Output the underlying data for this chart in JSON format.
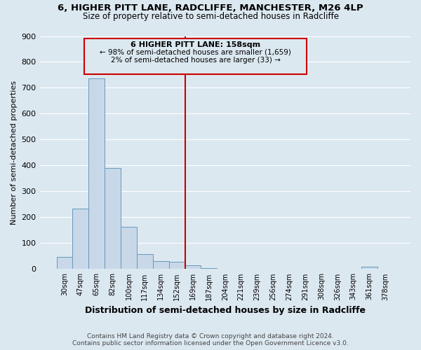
{
  "title": "6, HIGHER PITT LANE, RADCLIFFE, MANCHESTER, M26 4LP",
  "subtitle": "Size of property relative to semi-detached houses in Radcliffe",
  "xlabel": "Distribution of semi-detached houses by size in Radcliffe",
  "ylabel": "Number of semi-detached properties",
  "bin_labels": [
    "30sqm",
    "47sqm",
    "65sqm",
    "82sqm",
    "100sqm",
    "117sqm",
    "134sqm",
    "152sqm",
    "169sqm",
    "187sqm",
    "204sqm",
    "221sqm",
    "239sqm",
    "256sqm",
    "274sqm",
    "291sqm",
    "308sqm",
    "326sqm",
    "343sqm",
    "361sqm",
    "378sqm"
  ],
  "bar_heights": [
    47,
    233,
    737,
    390,
    163,
    57,
    30,
    27,
    14,
    3,
    0,
    0,
    0,
    0,
    0,
    0,
    0,
    0,
    0,
    8,
    0
  ],
  "bar_color": "#c8d8e8",
  "bar_edge_color": "#6699bb",
  "vline_x": 7.5,
  "vline_color": "#cc0000",
  "annotation_title": "6 HIGHER PITT LANE: 158sqm",
  "annotation_left": "← 98% of semi-detached houses are smaller (1,659)",
  "annotation_right": "2% of semi-detached houses are larger (33) →",
  "annotation_box_edge": "#cc0000",
  "ylim": [
    0,
    900
  ],
  "yticks": [
    0,
    100,
    200,
    300,
    400,
    500,
    600,
    700,
    800,
    900
  ],
  "footer_line1": "Contains HM Land Registry data © Crown copyright and database right 2024.",
  "footer_line2": "Contains public sector information licensed under the Open Government Licence v3.0.",
  "background_color": "#dce8f0",
  "grid_color": "#ffffff"
}
